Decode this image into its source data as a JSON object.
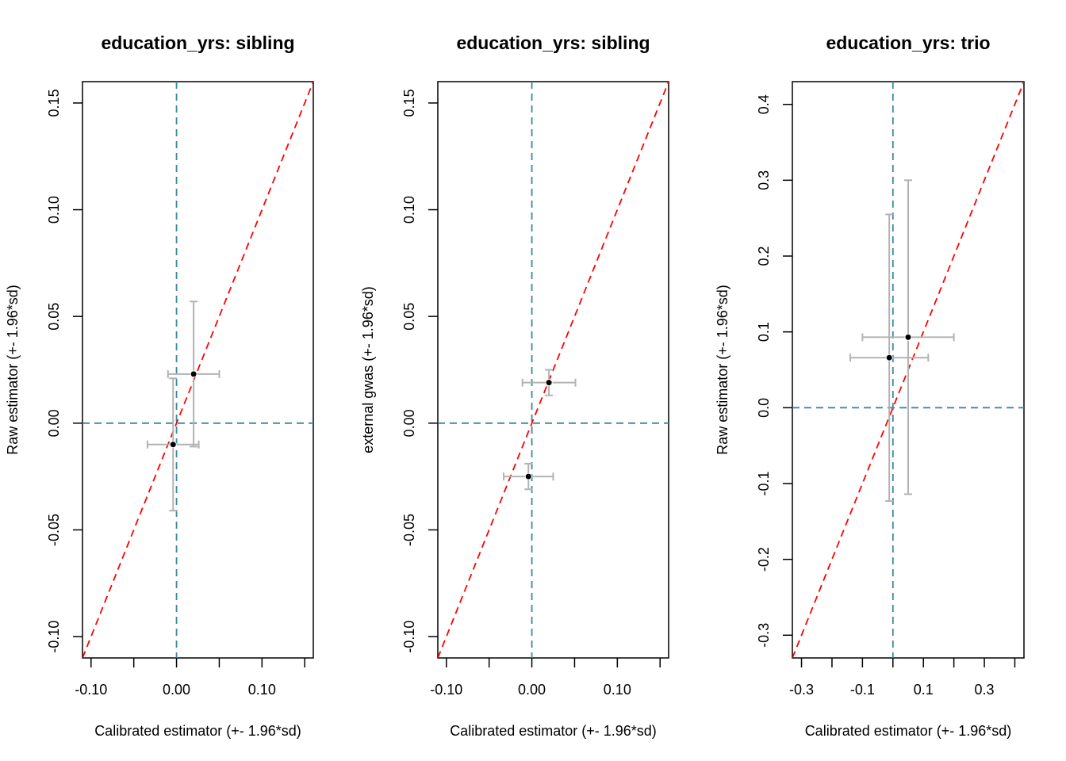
{
  "colors": {
    "reference_line": "#ff0000",
    "zero_line": "#3a88a0",
    "error_bar": "#b3b3b3",
    "point": "#000000",
    "axis": "#000000"
  },
  "chart_data": [
    {
      "type": "scatter",
      "title": "education_yrs: sibling",
      "xlabel": "Calibrated estimator (+- 1.96*sd)",
      "ylabel": "Raw estimator (+- 1.96*sd)",
      "xlim": [
        -0.11,
        0.16
      ],
      "ylim": [
        -0.11,
        0.16
      ],
      "x_ticks": [
        -0.1,
        -0.05,
        0.0,
        0.05,
        0.1,
        0.15
      ],
      "x_tick_labels": [
        "-0.10",
        "",
        "0.00",
        "",
        "0.10",
        ""
      ],
      "y_ticks": [
        -0.1,
        -0.05,
        0.0,
        0.05,
        0.1,
        0.15
      ],
      "y_tick_labels": [
        "-0.10",
        "-0.05",
        "0.00",
        "0.05",
        "0.10",
        "0.15"
      ],
      "reference_line": "y = x",
      "zero_lines": true,
      "points": [
        {
          "x": 0.02,
          "y": 0.023,
          "x_err": 0.03,
          "y_err": 0.034
        },
        {
          "x": -0.004,
          "y": -0.01,
          "x_err": 0.03,
          "y_err": 0.031
        }
      ]
    },
    {
      "type": "scatter",
      "title": "education_yrs: sibling",
      "xlabel": "Calibrated estimator (+- 1.96*sd)",
      "ylabel": "external gwas (+- 1.96*sd)",
      "xlim": [
        -0.11,
        0.16
      ],
      "ylim": [
        -0.11,
        0.16
      ],
      "x_ticks": [
        -0.1,
        -0.05,
        0.0,
        0.05,
        0.1,
        0.15
      ],
      "x_tick_labels": [
        "-0.10",
        "",
        "0.00",
        "",
        "0.10",
        ""
      ],
      "y_ticks": [
        -0.1,
        -0.05,
        0.0,
        0.05,
        0.1,
        0.15
      ],
      "y_tick_labels": [
        "-0.10",
        "-0.05",
        "0.00",
        "0.05",
        "0.10",
        "0.15"
      ],
      "reference_line": "y = x",
      "zero_lines": true,
      "points": [
        {
          "x": 0.02,
          "y": 0.019,
          "x_err": 0.031,
          "y_err": 0.006
        },
        {
          "x": -0.004,
          "y": -0.025,
          "x_err": 0.029,
          "y_err": 0.006
        }
      ]
    },
    {
      "type": "scatter",
      "title": "education_yrs: trio",
      "xlabel": "Calibrated estimator (+- 1.96*sd)",
      "ylabel": "Raw estimator (+- 1.96*sd)",
      "xlim": [
        -0.33,
        0.43
      ],
      "ylim": [
        -0.33,
        0.43
      ],
      "x_ticks": [
        -0.3,
        -0.2,
        -0.1,
        0.0,
        0.1,
        0.2,
        0.3,
        0.4
      ],
      "x_tick_labels": [
        "-0.3",
        "",
        "-0.1",
        "",
        "0.1",
        "",
        "0.3",
        ""
      ],
      "y_ticks": [
        -0.3,
        -0.2,
        -0.1,
        0.0,
        0.1,
        0.2,
        0.3,
        0.4
      ],
      "y_tick_labels": [
        "-0.3",
        "-0.2",
        "-0.1",
        "0.0",
        "0.1",
        "0.2",
        "0.3",
        "0.4"
      ],
      "reference_line": "y = x",
      "zero_lines": true,
      "points": [
        {
          "x": 0.05,
          "y": 0.093,
          "x_err": 0.15,
          "y_err": 0.207
        },
        {
          "x": -0.012,
          "y": 0.066,
          "x_err": 0.128,
          "y_err": 0.189
        }
      ]
    }
  ]
}
